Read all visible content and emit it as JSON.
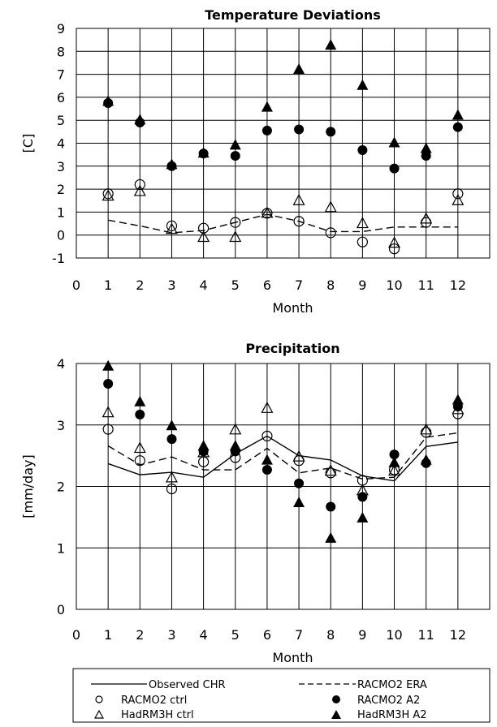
{
  "legend": {
    "observed": "Observed CHR",
    "racmo_era": "RACMO2   ERA",
    "racmo_ctrl": "RACMO2    ctrl",
    "racmo_a2": "RACMO2    A2",
    "hadrm_ctrl": "HadRM3H  ctrl",
    "hadrm_a2": "HadRM3H  A2"
  },
  "chart_data": [
    {
      "type": "scatter",
      "title": "Temperature Deviations",
      "xlabel": "Month",
      "ylabel": "[C]",
      "xlim": [
        0,
        13
      ],
      "ylim": [
        -1,
        9
      ],
      "x_ticks": [
        0,
        1,
        2,
        3,
        4,
        5,
        6,
        7,
        8,
        9,
        10,
        11,
        12
      ],
      "y_ticks": [
        -1,
        0,
        1,
        2,
        3,
        4,
        5,
        6,
        7,
        8,
        9
      ],
      "grid": "vertical and horizontal lines",
      "x": [
        1,
        2,
        3,
        4,
        5,
        6,
        7,
        8,
        9,
        10,
        11,
        12
      ],
      "series": [
        {
          "key": "racmo_era",
          "style": "dashed",
          "values": [
            0.65,
            0.4,
            0.1,
            0.2,
            0.55,
            0.9,
            0.6,
            0.15,
            0.15,
            0.35,
            0.35,
            0.35
          ]
        },
        {
          "key": "racmo_ctrl",
          "style": "open-circle",
          "values": [
            1.8,
            2.2,
            0.4,
            0.3,
            0.55,
            0.95,
            0.6,
            0.1,
            -0.3,
            -0.6,
            0.55,
            1.8
          ]
        },
        {
          "key": "hadrm_ctrl",
          "style": "open-triangle",
          "values": [
            1.7,
            1.9,
            0.25,
            -0.1,
            -0.1,
            0.95,
            1.5,
            1.2,
            0.5,
            -0.35,
            0.7,
            1.5
          ]
        },
        {
          "key": "racmo_a2",
          "style": "filled-circle",
          "values": [
            5.75,
            4.9,
            3.0,
            3.55,
            3.45,
            4.55,
            4.6,
            4.5,
            3.7,
            2.9,
            3.45,
            4.7
          ]
        },
        {
          "key": "hadrm_a2",
          "style": "filled-triangle",
          "values": [
            5.8,
            5.0,
            3.05,
            3.55,
            3.9,
            5.55,
            7.2,
            8.25,
            6.5,
            4.0,
            3.75,
            5.2
          ]
        }
      ]
    },
    {
      "type": "scatter",
      "title": "Precipitation",
      "xlabel": "Month",
      "ylabel": "[mm/day]",
      "xlim": [
        0,
        13
      ],
      "ylim": [
        0,
        4
      ],
      "x_ticks": [
        0,
        1,
        2,
        3,
        4,
        5,
        6,
        7,
        8,
        9,
        10,
        11,
        12
      ],
      "y_ticks": [
        0,
        1,
        2,
        3,
        4
      ],
      "grid": "vertical and horizontal lines",
      "x": [
        1,
        2,
        3,
        4,
        5,
        6,
        7,
        8,
        9,
        10,
        11,
        12
      ],
      "series": [
        {
          "key": "observed",
          "style": "solid",
          "values": [
            2.37,
            2.19,
            2.23,
            2.15,
            2.53,
            2.82,
            2.5,
            2.43,
            2.17,
            2.09,
            2.65,
            2.72
          ]
        },
        {
          "key": "racmo_era",
          "style": "dashed",
          "values": [
            2.66,
            2.35,
            2.48,
            2.27,
            2.27,
            2.62,
            2.22,
            2.3,
            2.12,
            2.15,
            2.8,
            2.87
          ]
        },
        {
          "key": "racmo_ctrl",
          "style": "open-circle",
          "values": [
            2.93,
            2.42,
            1.96,
            2.4,
            2.47,
            2.82,
            2.42,
            2.22,
            2.1,
            2.27,
            2.88,
            3.18
          ]
        },
        {
          "key": "hadrm_ctrl",
          "style": "open-triangle",
          "values": [
            3.2,
            2.62,
            2.14,
            2.55,
            2.92,
            3.27,
            2.48,
            2.25,
            1.93,
            2.25,
            2.92,
            3.25
          ]
        },
        {
          "key": "racmo_a2",
          "style": "filled-circle",
          "values": [
            3.67,
            3.17,
            2.77,
            2.57,
            2.57,
            2.27,
            2.05,
            1.67,
            1.83,
            2.52,
            2.38,
            3.3
          ]
        },
        {
          "key": "hadrm_a2",
          "style": "filled-triangle",
          "values": [
            3.95,
            3.37,
            2.98,
            2.65,
            2.65,
            2.42,
            1.73,
            1.15,
            1.48,
            2.38,
            2.42,
            3.4
          ]
        }
      ]
    }
  ]
}
